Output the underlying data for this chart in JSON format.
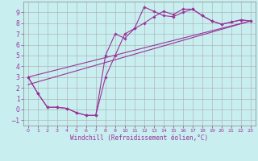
{
  "title": "",
  "xlabel": "Windchill (Refroidissement éolien,°C)",
  "background_color": "#c8eef0",
  "grid_color": "#aaaaaa",
  "line_color": "#993399",
  "xlim": [
    -0.5,
    23.5
  ],
  "ylim": [
    -1.5,
    10.0
  ],
  "yticks": [
    -1,
    0,
    1,
    2,
    3,
    4,
    5,
    6,
    7,
    8,
    9
  ],
  "xticks": [
    0,
    1,
    2,
    3,
    4,
    5,
    6,
    7,
    8,
    9,
    10,
    11,
    12,
    13,
    14,
    15,
    16,
    17,
    18,
    19,
    20,
    21,
    22,
    23
  ],
  "line1_x": [
    0,
    1,
    2,
    3,
    4,
    5,
    6,
    7,
    8,
    9,
    10,
    11,
    12,
    13,
    14,
    15,
    16,
    17,
    18,
    19,
    20,
    21,
    22,
    23
  ],
  "line1_y": [
    3.0,
    1.5,
    0.2,
    0.2,
    0.1,
    -0.3,
    -0.55,
    -0.55,
    5.0,
    7.0,
    6.6,
    7.5,
    9.5,
    9.1,
    8.7,
    8.6,
    9.0,
    9.3,
    8.7,
    8.2,
    7.9,
    8.1,
    8.3,
    8.2
  ],
  "line2_x": [
    0,
    1,
    2,
    3,
    4,
    5,
    6,
    7,
    8,
    9,
    10,
    11,
    12,
    13,
    14,
    15,
    16,
    17,
    18,
    19,
    20,
    21,
    22,
    23
  ],
  "line2_y": [
    3.0,
    1.5,
    0.2,
    0.2,
    0.1,
    -0.3,
    -0.55,
    -0.55,
    3.0,
    5.0,
    7.0,
    7.5,
    8.0,
    8.6,
    9.1,
    8.8,
    9.3,
    9.3,
    8.7,
    8.2,
    7.9,
    8.1,
    8.3,
    8.2
  ],
  "line3_x": [
    0,
    23
  ],
  "line3_y": [
    3.0,
    8.2
  ],
  "line4_x": [
    0,
    23
  ],
  "line4_y": [
    2.3,
    8.2
  ]
}
